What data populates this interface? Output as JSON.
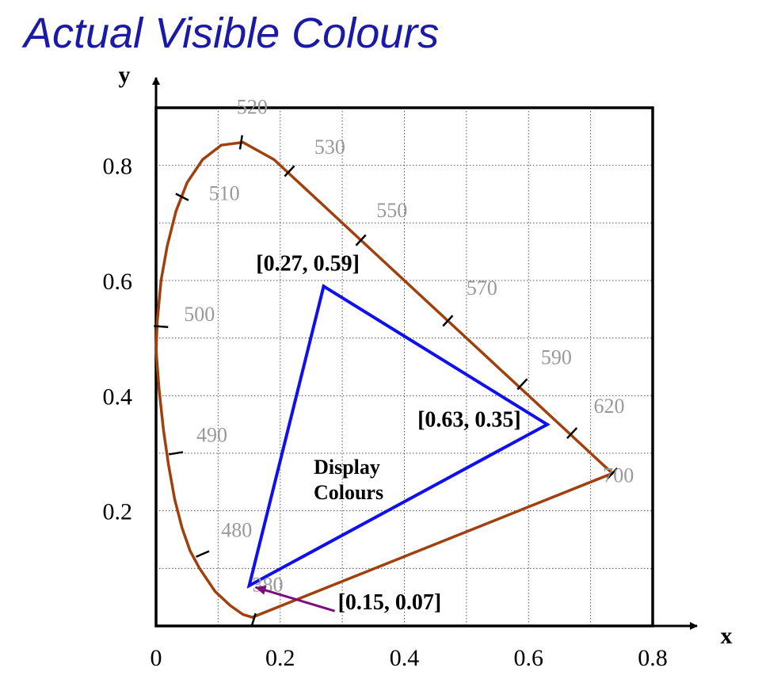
{
  "title": "Actual Visible Colours",
  "colors": {
    "spectral_locus": "#a0410d",
    "display_gamut": "#1010ee",
    "arrow": "#7a0e7a",
    "wavelength_label": "#999999",
    "grid": "#555555",
    "text": "#000000",
    "title": "#1a1aa6"
  },
  "chart_data": {
    "type": "line",
    "title": "Actual Visible Colours",
    "xlabel": "x",
    "ylabel": "y",
    "xlim": [
      0,
      0.8
    ],
    "ylim": [
      0,
      0.9
    ],
    "grid": true,
    "x_ticks": [
      0,
      0.2,
      0.4,
      0.6,
      0.8
    ],
    "x_tick_labels": [
      "0",
      "0.2",
      "0.4",
      "0.6",
      "0.8"
    ],
    "y_ticks": [
      0.2,
      0.4,
      0.6,
      0.8
    ],
    "y_tick_labels": [
      "0.2",
      "0.4",
      "0.6",
      "0.8"
    ],
    "spectral_locus": {
      "x": [
        0.155,
        0.14,
        0.12,
        0.095,
        0.07,
        0.055,
        0.042,
        0.03,
        0.02,
        0.012,
        0.005,
        0.0,
        0.002,
        0.008,
        0.018,
        0.032,
        0.05,
        0.075,
        0.105,
        0.14,
        0.165,
        0.19,
        0.23,
        0.27,
        0.33,
        0.4,
        0.47,
        0.54,
        0.6,
        0.66,
        0.7,
        0.735
      ],
      "y": [
        0.015,
        0.02,
        0.035,
        0.06,
        0.1,
        0.13,
        0.17,
        0.22,
        0.28,
        0.34,
        0.41,
        0.48,
        0.53,
        0.6,
        0.66,
        0.72,
        0.77,
        0.81,
        0.835,
        0.84,
        0.825,
        0.81,
        0.77,
        0.73,
        0.67,
        0.6,
        0.53,
        0.46,
        0.4,
        0.34,
        0.3,
        0.265
      ]
    },
    "wavelength_markers": [
      {
        "label": "520",
        "x": 0.137,
        "y": 0.84,
        "label_x": 0.13,
        "label_y": 0.89
      },
      {
        "label": "530",
        "x": 0.215,
        "y": 0.79,
        "label_x": 0.255,
        "label_y": 0.82
      },
      {
        "label": "510",
        "x": 0.042,
        "y": 0.745,
        "label_x": 0.085,
        "label_y": 0.74
      },
      {
        "label": "550",
        "x": 0.33,
        "y": 0.67,
        "label_x": 0.355,
        "label_y": 0.71
      },
      {
        "label": "570",
        "x": 0.47,
        "y": 0.53,
        "label_x": 0.5,
        "label_y": 0.575
      },
      {
        "label": "500",
        "x": 0.008,
        "y": 0.52,
        "label_x": 0.045,
        "label_y": 0.53
      },
      {
        "label": "590",
        "x": 0.59,
        "y": 0.42,
        "label_x": 0.62,
        "label_y": 0.455
      },
      {
        "label": "620",
        "x": 0.67,
        "y": 0.335,
        "label_x": 0.705,
        "label_y": 0.37
      },
      {
        "label": "490",
        "x": 0.032,
        "y": 0.3,
        "label_x": 0.065,
        "label_y": 0.32
      },
      {
        "label": "700",
        "x": 0.735,
        "y": 0.265,
        "label_x": 0.72,
        "label_y": 0.25
      },
      {
        "label": "480",
        "x": 0.075,
        "y": 0.125,
        "label_x": 0.105,
        "label_y": 0.155
      },
      {
        "label": "380",
        "x": 0.157,
        "y": 0.01,
        "label_x": 0.155,
        "label_y": 0.06
      }
    ],
    "display_gamut": {
      "name": "Display Colours",
      "label_line1": "Display",
      "label_line2": "Colours",
      "vertices": [
        {
          "x": 0.27,
          "y": 0.59,
          "label": "[0.27, 0.59]"
        },
        {
          "x": 0.63,
          "y": 0.35,
          "label": "[0.63, 0.35]"
        },
        {
          "x": 0.15,
          "y": 0.07,
          "label": "[0.15, 0.07]"
        }
      ]
    }
  }
}
